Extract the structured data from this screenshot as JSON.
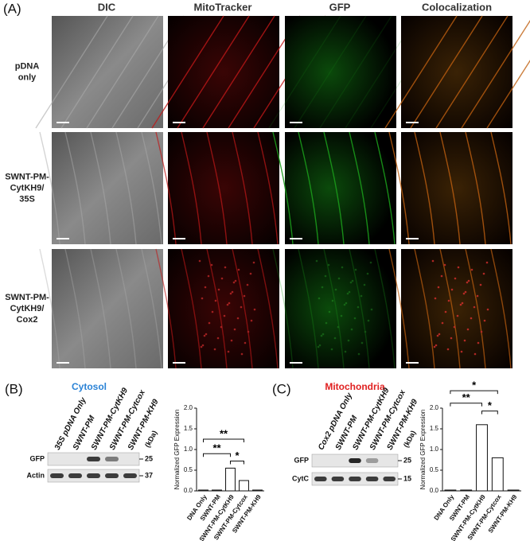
{
  "panel_a": {
    "label": "(A)",
    "columns": [
      "DIC",
      "MitoTracker",
      "GFP",
      "Colocalization"
    ],
    "rows": [
      [
        "pDNA",
        "only"
      ],
      [
        "SWNT-PM-",
        "CytKH9/",
        "35S"
      ],
      [
        "SWNT-PM-",
        "CytKH9/",
        "Cox2"
      ]
    ]
  },
  "panel_b": {
    "label": "(B)",
    "title": "Cytosol",
    "lanes": [
      "35S pDNA Only",
      "SWNT-PM",
      "SWNT-PM-CytKH9",
      "SWNT-PM-Cytcox",
      "SWNT-PM-KH9"
    ],
    "unit": "(kDa)",
    "bands": [
      "GFP",
      "Actin"
    ],
    "markers": [
      "25",
      "37"
    ]
  },
  "panel_c": {
    "label": "(C)",
    "title": "Mitochondria",
    "lanes": [
      "Cox2 pDNA Only",
      "SWNT-PM",
      "SWNT-PM-CytKH9",
      "SWNT-PM-Cytcox",
      "SWNT-PM-KH9"
    ],
    "unit": "(kDa)",
    "bands": [
      "GFP",
      "CytC"
    ],
    "markers": [
      "25",
      "15"
    ]
  },
  "chart_data": [
    {
      "type": "bar",
      "y_label": "Normalized GFP Expression",
      "categories": [
        "DNA Only",
        "SWNT-PM",
        "SWNT-PM-CytKH9",
        "SWNT-PM-Cytcox",
        "SWNT-PM-KH9"
      ],
      "values": [
        0.02,
        0.02,
        0.55,
        0.25,
        0.02
      ],
      "color": "#ffffff",
      "ylim": [
        0,
        2.0
      ],
      "yticks": [
        {
          "value": 0,
          "label": "0.0"
        },
        0.5,
        {
          "value": 1,
          "label": "1.0"
        },
        1.5,
        {
          "value": 2,
          "label": "2.0"
        }
      ],
      "annotations": [
        "**",
        "**",
        "*"
      ]
    },
    {
      "type": "bar",
      "y_label": "Normalized GFP Expression",
      "categories": [
        "DNA Only",
        "SWNT-PM",
        "SWNT-PM-CytKH9",
        "SWNT-PM-Cytcox",
        "SWNT-PM-KH9"
      ],
      "values": [
        0.02,
        0.02,
        1.6,
        0.8,
        0.02
      ],
      "color": "#ffffff",
      "ylim": [
        0,
        2.0
      ],
      "yticks": [
        {
          "value": 0,
          "label": "0.0"
        },
        0.5,
        {
          "value": 1,
          "label": "1.0"
        },
        1.5,
        {
          "value": 2,
          "label": "2.0"
        }
      ],
      "annotations": [
        "*",
        "**",
        "*"
      ]
    }
  ]
}
